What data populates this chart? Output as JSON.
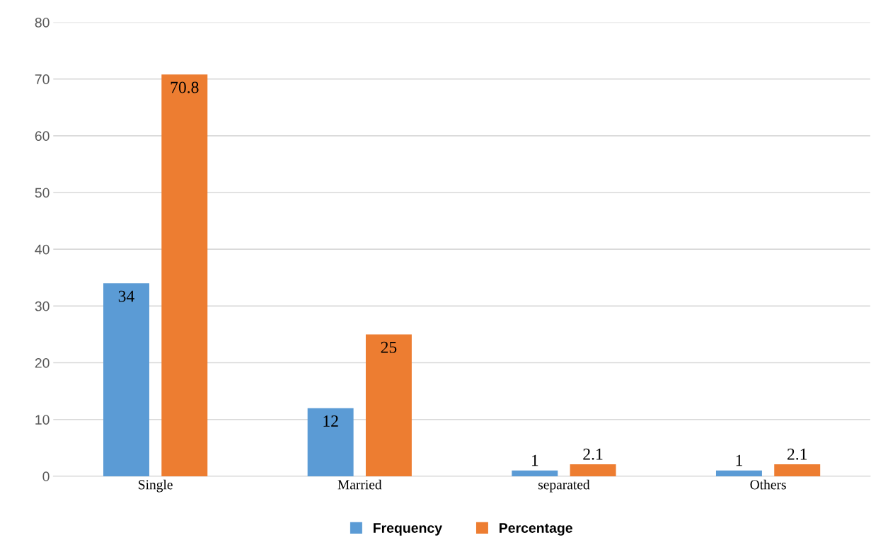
{
  "chart_data": {
    "type": "bar",
    "categories": [
      "Single",
      "Married",
      "separated",
      "Others"
    ],
    "series": [
      {
        "name": "Frequency",
        "color": "#5b9bd5",
        "values": [
          34,
          12,
          1,
          1
        ]
      },
      {
        "name": "Percentage",
        "color": "#ed7d31",
        "values": [
          70.8,
          25,
          2.1,
          2.1
        ]
      }
    ],
    "ylim": [
      0,
      80
    ],
    "yticks": [
      0,
      10,
      20,
      30,
      40,
      50,
      60,
      70,
      80
    ],
    "grid": "y",
    "legend": "bottom",
    "data_labels": true
  }
}
